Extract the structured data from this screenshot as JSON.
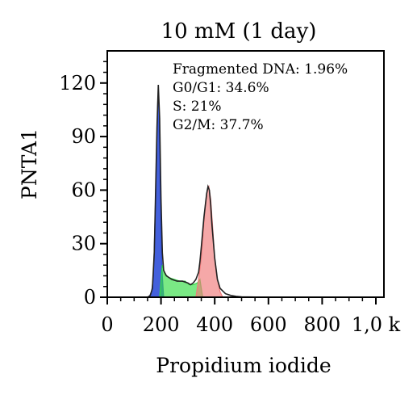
{
  "chart_data": {
    "type": "area",
    "title": "10 mM (1 day)",
    "xlabel": "Propidium iodide",
    "ylabel": "PNTA1",
    "xlim": [
      0,
      1030
    ],
    "ylim": [
      0,
      138
    ],
    "x_ticks": [
      0,
      200,
      400,
      600,
      800,
      1000
    ],
    "x_tick_labels": [
      "0",
      "200",
      "400",
      "600",
      "800",
      "1,0 k"
    ],
    "y_ticks": [
      0,
      30,
      60,
      90,
      120
    ],
    "y_tick_labels": [
      "0",
      "30",
      "60",
      "90",
      "120"
    ],
    "grid": false,
    "annotations": [
      "Fragmented DNA: 1.96%",
      "G0/G1: 34.6%",
      "S: 21%",
      "G2/M: 37.7%"
    ],
    "colors": {
      "G0/G1": "#2f4fd8",
      "S": "#33dd44",
      "G2/M": "#f07a7a",
      "histogram": "#222222"
    },
    "histogram": {
      "x": [
        150,
        160,
        168,
        175,
        180,
        185,
        190,
        195,
        200,
        205,
        210,
        220,
        240,
        260,
        280,
        300,
        310,
        320,
        330,
        340,
        345,
        350,
        360,
        370,
        375,
        380,
        385,
        390,
        400,
        410,
        420,
        440,
        460,
        480,
        500,
        600,
        700,
        800,
        1000
      ],
      "y": [
        0,
        1,
        5,
        25,
        60,
        95,
        119,
        100,
        55,
        25,
        15,
        12,
        10,
        9,
        9,
        8,
        7,
        8,
        10,
        14,
        20,
        28,
        45,
        58,
        62,
        60,
        52,
        40,
        22,
        10,
        5,
        2,
        1,
        0.5,
        0.2,
        0,
        0,
        0,
        0
      ]
    },
    "series": [
      {
        "name": "G0/G1",
        "x": [
          155,
          165,
          172,
          178,
          184,
          188,
          192,
          196,
          200,
          205,
          210
        ],
        "y": [
          0,
          3,
          12,
          45,
          85,
          110,
          106,
          70,
          35,
          12,
          0
        ]
      },
      {
        "name": "S",
        "x": [
          195,
          205,
          215,
          230,
          250,
          270,
          290,
          305,
          320,
          335,
          345,
          355
        ],
        "y": [
          0,
          18,
          13,
          11,
          10,
          9,
          9,
          7,
          7,
          8,
          10,
          0
        ]
      },
      {
        "name": "G2/M",
        "x": [
          330,
          340,
          350,
          358,
          365,
          372,
          378,
          385,
          392,
          400,
          410,
          420,
          430
        ],
        "y": [
          0,
          10,
          22,
          38,
          52,
          60,
          62,
          55,
          40,
          22,
          10,
          3,
          0
        ]
      }
    ]
  }
}
